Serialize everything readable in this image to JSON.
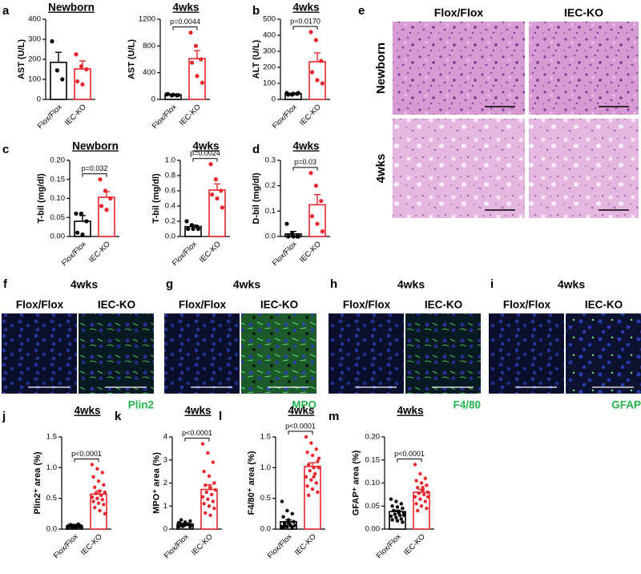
{
  "chart_data": [
    {
      "type": "bar",
      "label": "a",
      "title": "Newborn",
      "ylabel": "AST (U/L)",
      "categories": [
        "Flox/Flox",
        "IEC-KO"
      ],
      "colors": [
        "#000000",
        "#e8262b"
      ],
      "values": [
        185,
        152
      ],
      "errors": [
        50,
        40
      ],
      "points": [
        [
          290,
          145,
          100
        ],
        [
          225,
          165,
          150,
          90,
          75
        ]
      ],
      "ylim": [
        0,
        400
      ],
      "yticks": [
        0,
        100,
        200,
        300,
        400
      ]
    },
    {
      "type": "bar",
      "title": "4wks",
      "ylabel": "AST (U/L)",
      "categories": [
        "Flox/Flox",
        "IEC-KO"
      ],
      "colors": [
        "#000000",
        "#e8262b"
      ],
      "values": [
        70,
        610
      ],
      "errors": [
        10,
        120
      ],
      "points": [
        [
          75,
          60,
          60,
          80,
          70,
          65
        ],
        [
          1000,
          800,
          600,
          550,
          350,
          250
        ]
      ],
      "ylim": [
        0,
        1200
      ],
      "yticks": [
        0,
        400,
        800,
        1200
      ],
      "annotation": "p=0.0044"
    },
    {
      "type": "bar",
      "label": "b",
      "title": "4wks",
      "ylabel": "ALT (U/L)",
      "categories": [
        "Flox/Flox",
        "IEC-KO"
      ],
      "colors": [
        "#000000",
        "#e8262b"
      ],
      "values": [
        35,
        235
      ],
      "errors": [
        5,
        55
      ],
      "points": [
        [
          40,
          30,
          35,
          30,
          35,
          40
        ],
        [
          420,
          370,
          240,
          170,
          120,
          100
        ]
      ],
      "ylim": [
        0,
        500
      ],
      "yticks": [
        0,
        100,
        200,
        300,
        400,
        500
      ],
      "annotation": "p=0.0170"
    },
    {
      "type": "bar",
      "label": "c",
      "title": "Newborn",
      "ylabel": "T-bil (mg/dl)",
      "categories": [
        "Flox/Flox",
        "IEC-KO"
      ],
      "colors": [
        "#000000",
        "#e8262b"
      ],
      "values": [
        0.04,
        0.103
      ],
      "errors": [
        0.015,
        0.015
      ],
      "points": [
        [
          0.06,
          0.06,
          0.04,
          0.01,
          0.005
        ],
        [
          0.15,
          0.12,
          0.1,
          0.08,
          0.07
        ]
      ],
      "ylim": [
        0,
        0.2
      ],
      "yticks": [
        {
          "value": 0,
          "label": "0.00"
        },
        0.05,
        {
          "value": 0.1,
          "label": "0.10"
        },
        0.15,
        {
          "value": 0.2,
          "label": "0.20"
        }
      ],
      "annotation": "p=0.032"
    },
    {
      "type": "bar",
      "title": "4wks",
      "ylabel": "T-bil (mg/dl)",
      "categories": [
        "Flox/Flox",
        "IEC-KO"
      ],
      "colors": [
        "#000000",
        "#e8262b"
      ],
      "values": [
        0.13,
        0.61
      ],
      "errors": [
        0.02,
        0.08
      ],
      "points": [
        [
          0.2,
          0.15,
          0.13,
          0.1,
          0.1,
          0.1
        ],
        [
          0.95,
          0.75,
          0.6,
          0.55,
          0.5,
          0.38
        ]
      ],
      "ylim": [
        0,
        1
      ],
      "yticks": [
        {
          "value": 0,
          "label": "0.0"
        },
        0.2,
        0.4,
        0.6,
        0.8,
        {
          "value": 1,
          "label": "1.0"
        }
      ],
      "annotation": "p=0.0024"
    },
    {
      "type": "bar",
      "label": "d",
      "title": "4wks",
      "ylabel": "D-bil (mg/dl)",
      "categories": [
        "Flox/Flox",
        "IEC-KO"
      ],
      "colors": [
        "#000000",
        "#e8262b"
      ],
      "values": [
        0.01,
        0.125
      ],
      "errors": [
        0.01,
        0.04
      ],
      "points": [
        [
          0.05,
          0.01,
          0,
          0,
          0,
          0
        ],
        [
          0.25,
          0.2,
          0.14,
          0.08,
          0.05,
          0.02
        ]
      ],
      "ylim": [
        0,
        0.3
      ],
      "yticks": [
        {
          "value": 0,
          "label": "0.0"
        },
        0.1,
        0.2,
        0.3
      ],
      "annotation": "p=0.03"
    },
    {
      "type": "bar",
      "label": "j",
      "title": "4wks",
      "ylabel": "Plin2⁺ area (%)",
      "categories": [
        "Flox/Flox",
        "IEC-KO"
      ],
      "colors": [
        "#000000",
        "#e8262b"
      ],
      "values": [
        0.05,
        0.57
      ],
      "errors": [
        0.005,
        0.05
      ],
      "points": [
        [
          0.03,
          0.04,
          0.05,
          0.06,
          0.05,
          0.04,
          0.07,
          0.06,
          0.05,
          0.03,
          0.04,
          0.05,
          0.06,
          0.08,
          0.05,
          0.04,
          0.06,
          0.05,
          0.03,
          0.04
        ],
        [
          1.05,
          0.98,
          0.92,
          0.85,
          0.78,
          0.72,
          0.68,
          0.62,
          0.6,
          0.58,
          0.55,
          0.52,
          0.5,
          0.48,
          0.45,
          0.42,
          0.4,
          0.35,
          0.3,
          0.25
        ]
      ],
      "ylim": [
        0,
        1.5
      ],
      "yticks": [
        {
          "value": 0,
          "label": "0.0"
        },
        0.5,
        {
          "value": 1,
          "label": "1.0"
        },
        1.5
      ],
      "annotation": "p<0.0001"
    },
    {
      "type": "bar",
      "label": "k",
      "title": "4wks",
      "ylabel": "MPO⁺ area (%)",
      "categories": [
        "Flox/Flox",
        "IEC-KO"
      ],
      "colors": [
        "#000000",
        "#e8262b"
      ],
      "values": [
        0.22,
        1.72
      ],
      "errors": [
        0.03,
        0.2
      ],
      "points": [
        [
          0.1,
          0.15,
          0.2,
          0.25,
          0.3,
          0.35,
          0.4,
          0.2,
          0.18,
          0.12,
          0.22,
          0.28,
          0.15,
          0.2,
          0.25,
          0.3,
          0.1,
          0.18
        ],
        [
          3.7,
          3.3,
          2.9,
          2.5,
          2.3,
          2.0,
          1.9,
          1.8,
          1.7,
          1.6,
          1.5,
          1.4,
          1.3,
          1.2,
          1.1,
          1.0,
          0.9,
          0.7,
          0.6
        ]
      ],
      "ylim": [
        0,
        4
      ],
      "yticks": [
        0,
        1,
        2,
        3,
        4
      ],
      "annotation": "p<0.0001"
    },
    {
      "type": "bar",
      "label": "l",
      "title": "4wks",
      "ylabel": "F4/80⁺ area (%)",
      "categories": [
        "Flox/Flox",
        "IEC-KO"
      ],
      "colors": [
        "#000000",
        "#e8262b"
      ],
      "values": [
        0.12,
        1.02
      ],
      "errors": [
        0.03,
        0.06
      ],
      "points": [
        [
          0.45,
          0.3,
          0.25,
          0.2,
          0.15,
          0.12,
          0.1,
          0.08,
          0.06,
          0.05,
          0.05,
          0.04,
          0.04,
          0.03,
          0.03,
          0.1,
          0.12,
          0.08
        ],
        [
          1.5,
          1.4,
          1.3,
          1.25,
          1.2,
          1.1,
          1.05,
          1.0,
          1.0,
          0.95,
          0.9,
          0.85,
          0.8,
          0.75,
          0.7,
          0.65,
          0.6,
          0.55,
          0.85,
          1.15
        ]
      ],
      "ylim": [
        0,
        1.5
      ],
      "yticks": [
        {
          "value": 0,
          "label": "0.0"
        },
        0.5,
        {
          "value": 1,
          "label": "1.0"
        },
        1.5
      ],
      "annotation": "p<0.0001"
    },
    {
      "type": "bar",
      "label": "m",
      "title": "4wks",
      "ylabel": "GFAP⁺ area (%)",
      "categories": [
        "Flox/Flox",
        "IEC-KO"
      ],
      "colors": [
        "#000000",
        "#e8262b"
      ],
      "values": [
        0.038,
        0.08
      ],
      "errors": [
        0.003,
        0.006
      ],
      "points": [
        [
          0.065,
          0.06,
          0.055,
          0.05,
          0.048,
          0.045,
          0.04,
          0.038,
          0.035,
          0.032,
          0.03,
          0.028,
          0.025,
          0.022,
          0.02,
          0.018,
          0.015,
          0.04,
          0.035,
          0.03
        ],
        [
          0.14,
          0.12,
          0.11,
          0.105,
          0.1,
          0.095,
          0.09,
          0.085,
          0.08,
          0.078,
          0.075,
          0.07,
          0.065,
          0.06,
          0.055,
          0.05,
          0.045,
          0.04,
          0.09,
          0.07
        ]
      ],
      "ylim": [
        0,
        0.2
      ],
      "yticks": [
        {
          "value": 0,
          "label": "0.00"
        },
        0.05,
        {
          "value": 0.1,
          "label": "0.10"
        },
        0.15,
        {
          "value": 0.2,
          "label": "0.20"
        }
      ],
      "annotation": "p<0.0001"
    }
  ],
  "image_panels": [
    {
      "label": "e",
      "columns": [
        "Flox/Flox",
        "IEC-KO"
      ],
      "rows": [
        "Newborn",
        "4wks"
      ]
    },
    {
      "label": "f",
      "title": "4wks",
      "columns": [
        "Flox/Flox",
        "IEC-KO"
      ],
      "stain": "Plin2"
    },
    {
      "label": "g",
      "title": "4wks",
      "columns": [
        "Flox/Flox",
        "IEC-KO"
      ],
      "stain": "MPO"
    },
    {
      "label": "h",
      "title": "4wks",
      "columns": [
        "Flox/Flox",
        "IEC-KO"
      ],
      "stain": "F4/80"
    },
    {
      "label": "i",
      "title": "4wks",
      "columns": [
        "Flox/Flox",
        "IEC-KO"
      ],
      "stain": "GFAP"
    }
  ]
}
